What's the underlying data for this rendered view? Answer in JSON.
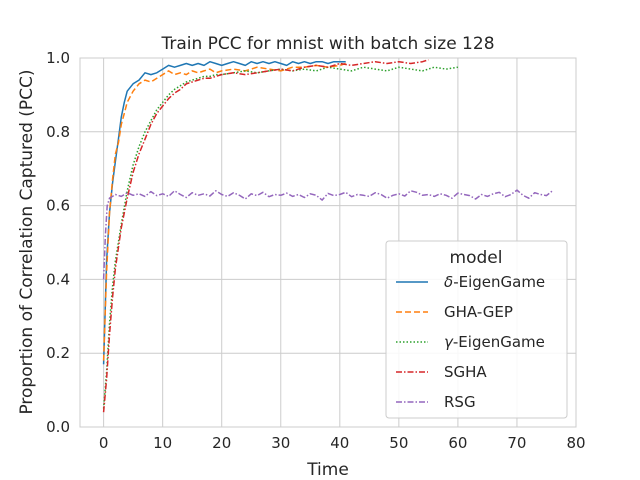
{
  "chart_data": {
    "type": "line",
    "title": "Train PCC for mnist with batch size 128",
    "xlabel": "Time",
    "ylabel": "Proportion of Correlation Captured (PCC)",
    "xlim": [
      -4,
      80
    ],
    "ylim": [
      0.0,
      1.0
    ],
    "xticks": [
      "0",
      "10",
      "20",
      "30",
      "40",
      "50",
      "60",
      "70",
      "80"
    ],
    "yticks": [
      "0.0",
      "0.2",
      "0.4",
      "0.6",
      "0.8",
      "1.0"
    ],
    "grid": true,
    "legend": {
      "title": "model",
      "placement": "lower-right"
    },
    "series": [
      {
        "name": "δ-EigenGame",
        "label_prefix": "δ",
        "label_suffix": "-EigenGame",
        "color": "#1f77b4",
        "style": "solid",
        "x": [
          0,
          0.5,
          1,
          1.5,
          2,
          2.5,
          3,
          3.5,
          4,
          5,
          6,
          7,
          8,
          9,
          10,
          11,
          12,
          13,
          14,
          15,
          16,
          17,
          18,
          19,
          20,
          21,
          22,
          23,
          24,
          25,
          26,
          27,
          28,
          29,
          30,
          31,
          32,
          33,
          34,
          35,
          36,
          37,
          38,
          39,
          40,
          41
        ],
        "y": [
          0.17,
          0.45,
          0.58,
          0.66,
          0.72,
          0.78,
          0.84,
          0.88,
          0.91,
          0.93,
          0.94,
          0.96,
          0.955,
          0.96,
          0.97,
          0.98,
          0.975,
          0.98,
          0.985,
          0.98,
          0.985,
          0.98,
          0.99,
          0.985,
          0.98,
          0.985,
          0.99,
          0.985,
          0.98,
          0.99,
          0.985,
          0.99,
          0.985,
          0.99,
          0.985,
          0.98,
          0.99,
          0.985,
          0.99,
          0.985,
          0.99,
          0.99,
          0.985,
          0.99,
          0.99,
          0.99
        ]
      },
      {
        "name": "GHA-GEP",
        "label_prefix": "",
        "label_suffix": "GHA-GEP",
        "color": "#ff7f0e",
        "style": "dashed",
        "x": [
          0,
          0.5,
          1,
          1.5,
          2,
          2.5,
          3,
          3.5,
          4,
          5,
          6,
          7,
          8,
          9,
          10,
          11,
          12,
          13,
          14,
          15,
          16,
          17,
          18,
          19,
          20,
          22,
          24,
          26,
          28,
          30,
          32,
          34,
          36,
          38,
          40,
          41
        ],
        "y": [
          0.18,
          0.42,
          0.58,
          0.67,
          0.74,
          0.77,
          0.82,
          0.85,
          0.88,
          0.91,
          0.93,
          0.94,
          0.935,
          0.945,
          0.955,
          0.965,
          0.955,
          0.96,
          0.955,
          0.965,
          0.96,
          0.965,
          0.97,
          0.96,
          0.965,
          0.97,
          0.965,
          0.975,
          0.97,
          0.965,
          0.975,
          0.975,
          0.98,
          0.975,
          0.98,
          0.985
        ]
      },
      {
        "name": "γ-EigenGame",
        "label_prefix": "γ",
        "label_suffix": "-EigenGame",
        "color": "#2ca02c",
        "style": "dotted",
        "x": [
          0,
          0.5,
          1,
          1.5,
          2,
          3,
          4,
          5,
          6,
          7,
          8,
          9,
          10,
          11,
          12,
          13,
          14,
          15,
          16,
          17,
          18,
          19,
          20,
          22,
          24,
          26,
          28,
          30,
          32,
          34,
          36,
          38,
          40,
          42,
          44,
          46,
          48,
          50,
          52,
          54,
          56,
          58,
          60
        ],
        "y": [
          0.05,
          0.15,
          0.28,
          0.38,
          0.45,
          0.55,
          0.64,
          0.71,
          0.76,
          0.8,
          0.83,
          0.86,
          0.88,
          0.9,
          0.915,
          0.925,
          0.935,
          0.94,
          0.945,
          0.95,
          0.95,
          0.955,
          0.955,
          0.96,
          0.965,
          0.96,
          0.965,
          0.97,
          0.965,
          0.97,
          0.965,
          0.975,
          0.97,
          0.965,
          0.975,
          0.97,
          0.965,
          0.975,
          0.97,
          0.965,
          0.975,
          0.97,
          0.975
        ]
      },
      {
        "name": "SGHA",
        "label_prefix": "",
        "label_suffix": "SGHA",
        "color": "#d62728",
        "style": "dashdot",
        "x": [
          0,
          0.5,
          1,
          1.5,
          2,
          3,
          4,
          5,
          6,
          7,
          8,
          9,
          10,
          11,
          12,
          13,
          14,
          15,
          16,
          17,
          18,
          19,
          20,
          22,
          24,
          26,
          28,
          30,
          32,
          34,
          36,
          38,
          40,
          42,
          44,
          46,
          48,
          50,
          52,
          54,
          55
        ],
        "y": [
          0.04,
          0.13,
          0.25,
          0.35,
          0.43,
          0.54,
          0.62,
          0.69,
          0.74,
          0.78,
          0.82,
          0.85,
          0.87,
          0.89,
          0.905,
          0.915,
          0.93,
          0.935,
          0.94,
          0.945,
          0.945,
          0.95,
          0.955,
          0.96,
          0.955,
          0.96,
          0.965,
          0.97,
          0.965,
          0.975,
          0.98,
          0.975,
          0.985,
          0.98,
          0.985,
          0.99,
          0.985,
          0.99,
          0.985,
          0.99,
          0.995
        ]
      },
      {
        "name": "RSG",
        "label_prefix": "",
        "label_suffix": "RSG",
        "color": "#9467bd",
        "style": "dashdot",
        "x": [
          0,
          0.3,
          0.6,
          1,
          1.5,
          2,
          3,
          4,
          5,
          6,
          7,
          8,
          9,
          10,
          11,
          12,
          13,
          14,
          15,
          16,
          17,
          18,
          19,
          20,
          21,
          22,
          23,
          24,
          25,
          26,
          27,
          28,
          29,
          30,
          31,
          32,
          33,
          34,
          35,
          36,
          37,
          38,
          39,
          40,
          41,
          42,
          43,
          44,
          45,
          46,
          47,
          48,
          49,
          50,
          51,
          52,
          53,
          54,
          55,
          56,
          57,
          58,
          59,
          60,
          61,
          62,
          63,
          64,
          65,
          66,
          67,
          68,
          69,
          70,
          71,
          72,
          73,
          74,
          75,
          76
        ],
        "y": [
          0.4,
          0.52,
          0.6,
          0.62,
          0.625,
          0.63,
          0.625,
          0.635,
          0.628,
          0.632,
          0.625,
          0.638,
          0.627,
          0.632,
          0.625,
          0.64,
          0.63,
          0.622,
          0.635,
          0.628,
          0.632,
          0.626,
          0.64,
          0.63,
          0.625,
          0.635,
          0.628,
          0.618,
          0.632,
          0.627,
          0.636,
          0.624,
          0.63,
          0.628,
          0.634,
          0.625,
          0.63,
          0.622,
          0.632,
          0.628,
          0.615,
          0.633,
          0.627,
          0.63,
          0.636,
          0.624,
          0.63,
          0.628,
          0.625,
          0.635,
          0.63,
          0.62,
          0.628,
          0.632,
          0.626,
          0.64,
          0.636,
          0.628,
          0.63,
          0.625,
          0.632,
          0.628,
          0.62,
          0.634,
          0.63,
          0.627,
          0.618,
          0.63,
          0.625,
          0.632,
          0.636,
          0.624,
          0.63,
          0.642,
          0.628,
          0.62,
          0.635,
          0.63,
          0.627,
          0.64
        ]
      }
    ]
  }
}
